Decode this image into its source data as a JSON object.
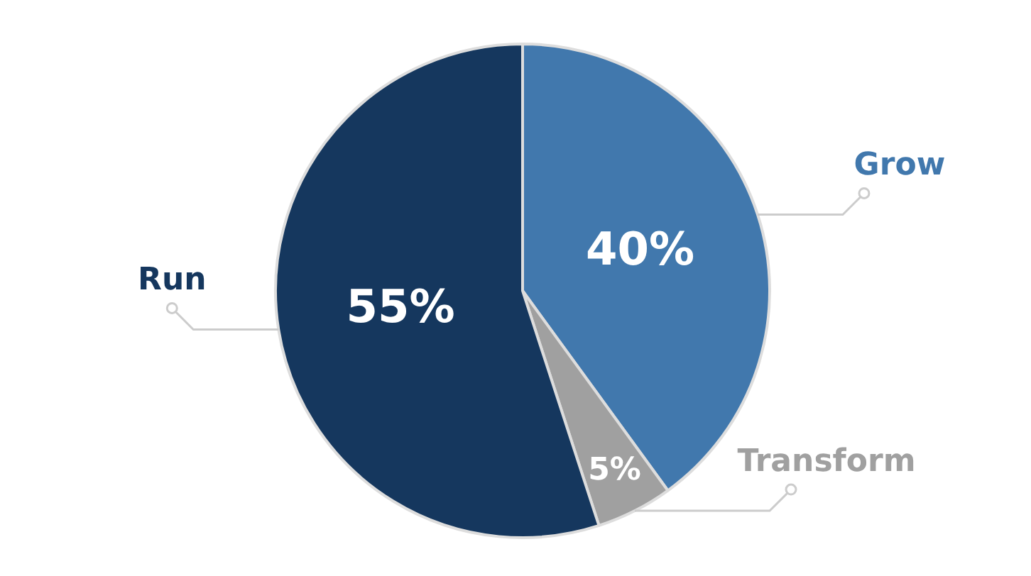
{
  "chart_data": {
    "type": "pie",
    "categories": [
      "Grow",
      "Transform",
      "Run"
    ],
    "values": [
      40,
      5,
      55
    ],
    "colors": [
      "#4178ad",
      "#a0a0a0",
      "#15375e"
    ],
    "value_labels": [
      "40%",
      "5%",
      "55%"
    ],
    "legend": false
  }
}
